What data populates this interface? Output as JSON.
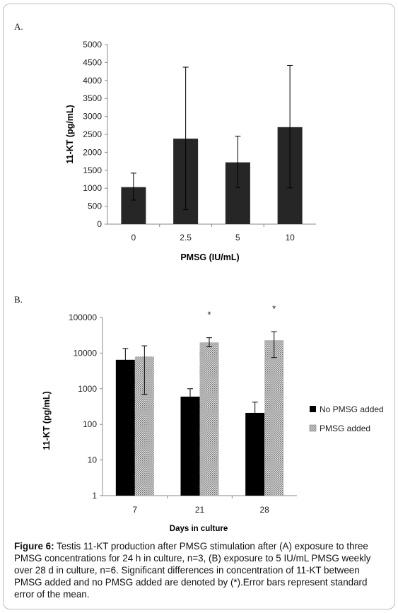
{
  "panels": {
    "a_label": "A.",
    "b_label": "B."
  },
  "caption": {
    "figure_label": "Figure 6:",
    "text": " Testis 11-KT production after PMSG stimulation after (A) exposure to three PMSG concentrations for 24 h in culture, n=3, (B) exposure to 5 IU/mL PMSG weekly over 28 d in culture, n=6. Significant differences in concentration of 11-KT between PMSG added and no PMSG added are denoted by (*).Error bars represent standard error of the mean."
  },
  "chart_data": [
    {
      "type": "bar",
      "categories": [
        "0",
        "2.5",
        "5",
        "10"
      ],
      "values": [
        1030,
        2380,
        1720,
        2700
      ],
      "error_low": [
        670,
        400,
        1020,
        1010
      ],
      "error_high": [
        1420,
        4370,
        2450,
        4420
      ],
      "xlabel": "PMSG (IU/mL)",
      "ylabel": "11-KT (pg/mL)",
      "ylim": [
        0,
        5000
      ],
      "yticks": [
        "0",
        "500",
        "1000",
        "1500",
        "2000",
        "2500",
        "3000",
        "3500",
        "4000",
        "4500",
        "5000"
      ],
      "bar_color": "#262626",
      "grid": false
    },
    {
      "type": "bar",
      "scale": "log",
      "categories": [
        "7",
        "21",
        "28"
      ],
      "series": [
        {
          "name": "No PMSG added",
          "values": [
            6500,
            600,
            210
          ],
          "error_low": [
            2500,
            380,
            100
          ],
          "error_high": [
            13500,
            1000,
            420
          ],
          "color": "#000000"
        },
        {
          "name": "PMSG added",
          "values": [
            8000,
            20000,
            23000
          ],
          "error_low": [
            700,
            15000,
            7500
          ],
          "error_high": [
            16000,
            27000,
            40000
          ],
          "color": "#bdbdbd"
        }
      ],
      "significance": [
        "",
        "*",
        "*"
      ],
      "xlabel": "Days in culture",
      "ylabel": "11-KT (pg/mL)",
      "ylim": [
        1,
        100000
      ],
      "yticks": [
        "1",
        "10",
        "100",
        "1000",
        "10000",
        "100000"
      ],
      "legend_position": "right",
      "grid": false
    }
  ]
}
